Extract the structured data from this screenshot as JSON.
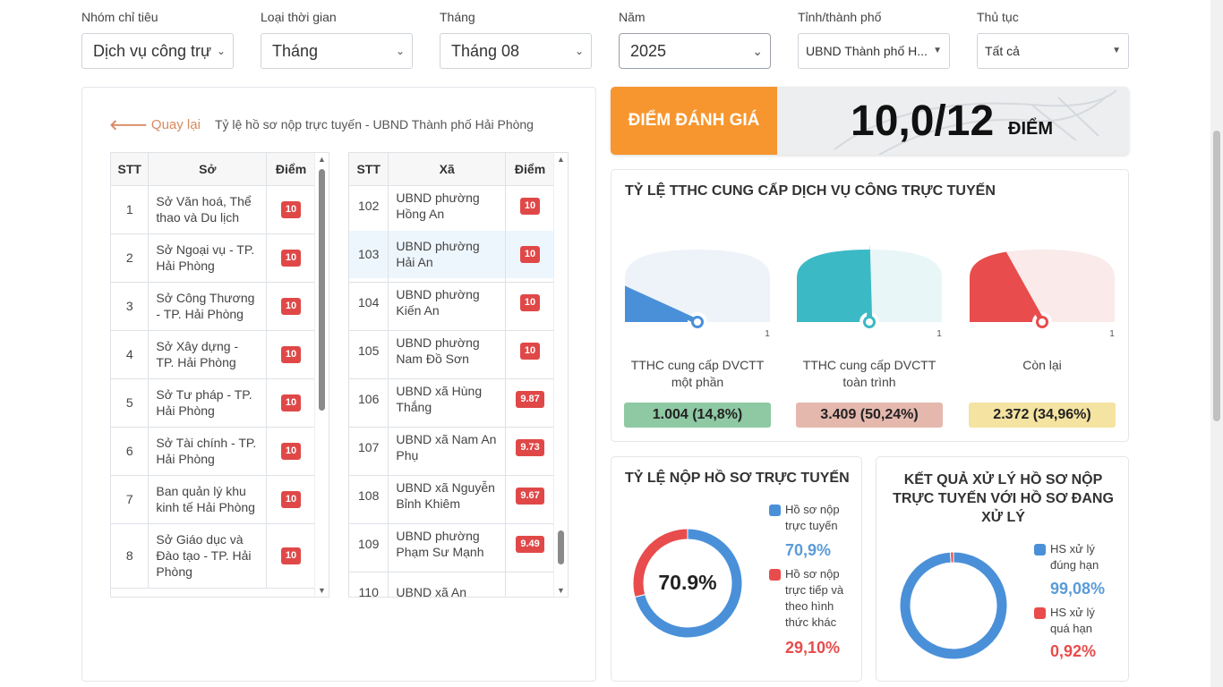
{
  "filters": [
    {
      "label": "Nhóm chỉ tiêu",
      "value": "Dịch vụ công trự"
    },
    {
      "label": "Loại thời gian",
      "value": "Tháng"
    },
    {
      "label": "Tháng",
      "value": "Tháng 08"
    },
    {
      "label": "Năm",
      "value": "2025"
    },
    {
      "label": "Tỉnh/thành phố",
      "value": "UBND Thành phố H..."
    },
    {
      "label": "Thủ tục",
      "value": "Tất cả"
    }
  ],
  "left": {
    "back_label": "Quay lại",
    "breadcrumb": "Tỷ lệ hồ sơ nộp trực tuyến - UBND Thành phố Hải Phòng",
    "so_table": {
      "headers": [
        "STT",
        "Sở",
        "Điểm"
      ],
      "rows": [
        {
          "stt": "1",
          "name": "Sở Văn hoá, Thể thao và Du lịch",
          "score": "10"
        },
        {
          "stt": "2",
          "name": "Sở Ngoại vụ - TP. Hải Phòng",
          "score": "10"
        },
        {
          "stt": "3",
          "name": "Sở Công Thương - TP. Hải Phòng",
          "score": "10"
        },
        {
          "stt": "4",
          "name": "Sở Xây dựng - TP. Hải Phòng",
          "score": "10"
        },
        {
          "stt": "5",
          "name": "Sở Tư pháp - TP. Hải Phòng",
          "score": "10"
        },
        {
          "stt": "6",
          "name": "Sở Tài chính - TP. Hải Phòng",
          "score": "10"
        },
        {
          "stt": "7",
          "name": "Ban quản lý khu kinh tế Hải Phòng",
          "score": "10"
        },
        {
          "stt": "8",
          "name": "Sở Giáo dục và Đào tạo - TP. Hải Phòng",
          "score": "10"
        }
      ]
    },
    "xa_table": {
      "headers": [
        "STT",
        "Xã",
        "Điểm"
      ],
      "rows": [
        {
          "stt": "102",
          "name": "UBND phường Hồng An",
          "score": "10"
        },
        {
          "stt": "103",
          "name": "UBND phường Hải An",
          "score": "10"
        },
        {
          "stt": "104",
          "name": "UBND phường Kiến An",
          "score": "10"
        },
        {
          "stt": "105",
          "name": "UBND phường Nam Đồ Sơn",
          "score": "10"
        },
        {
          "stt": "106",
          "name": "UBND xã Hùng Thắng",
          "score": "9.87"
        },
        {
          "stt": "107",
          "name": "UBND xã Nam An Phụ",
          "score": "9.73"
        },
        {
          "stt": "108",
          "name": "UBND xã Nguyễn Bỉnh Khiêm",
          "score": "9.67"
        },
        {
          "stt": "109",
          "name": "UBND phường Phạm Sư Mạnh",
          "score": "9.49"
        },
        {
          "stt": "110",
          "name": "UBND xã An",
          "score": ""
        }
      ]
    }
  },
  "score": {
    "label": "ĐIỂM ĐÁNH GIÁ",
    "value": "10,0/12",
    "unit": "ĐIỂM"
  },
  "tthc": {
    "title": "TỶ LỆ TTHC CUNG CẤP DỊCH VỤ CÔNG TRỰC TUYẾN",
    "gauges": [
      {
        "label": "TTHC cung cấp DVCTT một phần",
        "value_text": "1.004 (14,8%)",
        "fraction": 0.148,
        "max_label": "1",
        "color": "#4a90d9",
        "track": "#eef3f9",
        "box": "#8fc9a4"
      },
      {
        "label": "TTHC cung cấp DVCTT toàn trình",
        "value_text": "3.409 (50,24%)",
        "fraction": 0.5024,
        "max_label": "1",
        "color": "#3bb9c4",
        "track": "#e8f6f7",
        "box": "#e5b8ae"
      },
      {
        "label": "Còn lại",
        "value_text": "2.372 (34,96%)",
        "fraction": 0.3496,
        "max_label": "1",
        "color": "#e84c4c",
        "track": "#fbeaea",
        "box": "#f4e3a1"
      }
    ]
  },
  "online": {
    "title": "TỶ LỆ NỘP HỒ SƠ TRỰC TUYẾN",
    "center_text": "70.9%",
    "items": [
      {
        "label": "Hồ sơ nộp trực tuyến",
        "pct": "70,9%",
        "value": 70.9,
        "color": "#4a90d9"
      },
      {
        "label": "Hồ sơ nộp trực tiếp và theo hình thức khác",
        "pct": "29,10%",
        "value": 29.1,
        "color": "#e84c4c"
      }
    ]
  },
  "result": {
    "title": "KẾT QUẢ XỬ LÝ HỒ SƠ NỘP TRỰC TUYẾN VỚI HỒ SƠ ĐANG XỬ LÝ",
    "items": [
      {
        "label": "HS xử lý đúng hạn",
        "pct": "99,08%",
        "value": 99.08,
        "color": "#4a90d9"
      },
      {
        "label": "HS xử lý quá hạn",
        "pct": "0,92%",
        "value": 0.92,
        "color": "#e84c4c"
      }
    ]
  }
}
